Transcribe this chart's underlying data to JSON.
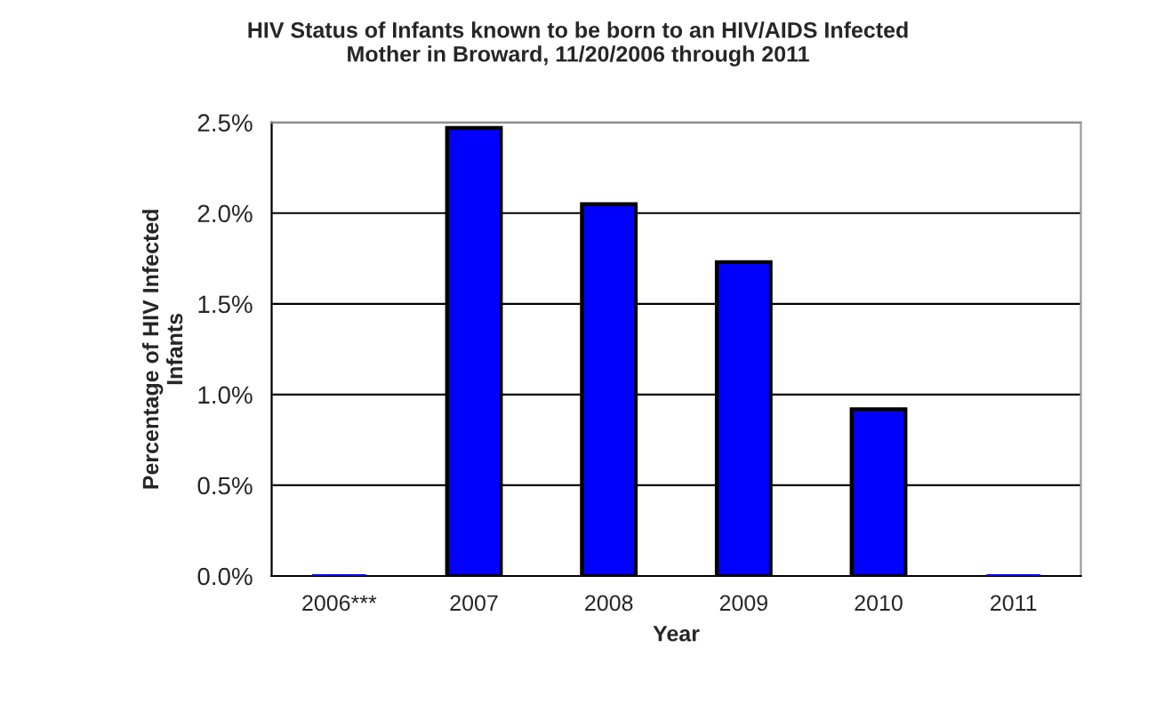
{
  "chart_data": {
    "type": "bar",
    "title": "HIV Status of Infants known to be born to an HIV/AIDS Infected\nMother in Broward, 11/20/2006 through 2011",
    "xlabel": "Year",
    "ylabel": "Percentage of HIV Infected\nInfants",
    "categories": [
      "2006***",
      "2007",
      "2008",
      "2009",
      "2010",
      "2011"
    ],
    "values": [
      0,
      2.47,
      2.05,
      1.73,
      0.92,
      0
    ],
    "color": "#0000ff",
    "ylim": [
      0,
      2.5
    ],
    "yticks": [
      {
        "value": 0,
        "label": "0.0%"
      },
      {
        "value": 0.5,
        "label": "0.5%"
      },
      {
        "value": 1.0,
        "label": "1.0%"
      },
      {
        "value": 1.5,
        "label": "1.5%"
      },
      {
        "value": 2.0,
        "label": "2.0%"
      },
      {
        "value": 2.5,
        "label": "2.5%"
      }
    ],
    "grid": "y"
  }
}
